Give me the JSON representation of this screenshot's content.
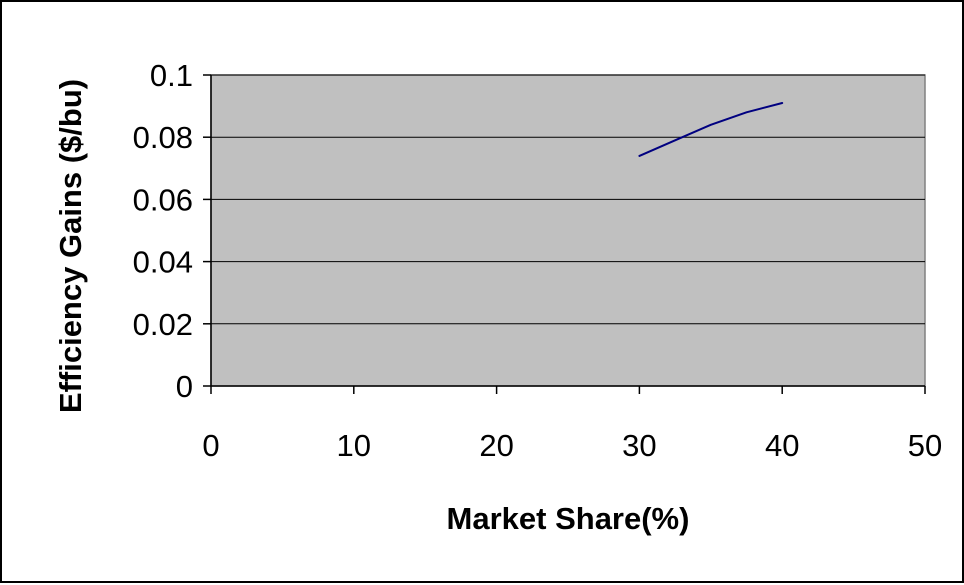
{
  "chart_data": {
    "type": "line",
    "title": "",
    "xlabel": "Market Share(%)",
    "ylabel": "Efficiency Gains ($/bu)",
    "xlim": [
      0,
      50
    ],
    "ylim": [
      0,
      0.1
    ],
    "x_ticks": [
      "0",
      "10",
      "20",
      "30",
      "40",
      "50"
    ],
    "y_ticks": [
      "0",
      "0.02",
      "0.04",
      "0.06",
      "0.08",
      "0.1"
    ],
    "grid": "horizontal",
    "legend": "none",
    "plot_background": "#c0c0c0",
    "series": [
      {
        "color": "#000080",
        "x": [
          30,
          32.5,
          35,
          37.5,
          40
        ],
        "y": [
          0.074,
          0.079,
          0.084,
          0.088,
          0.091
        ]
      }
    ]
  }
}
